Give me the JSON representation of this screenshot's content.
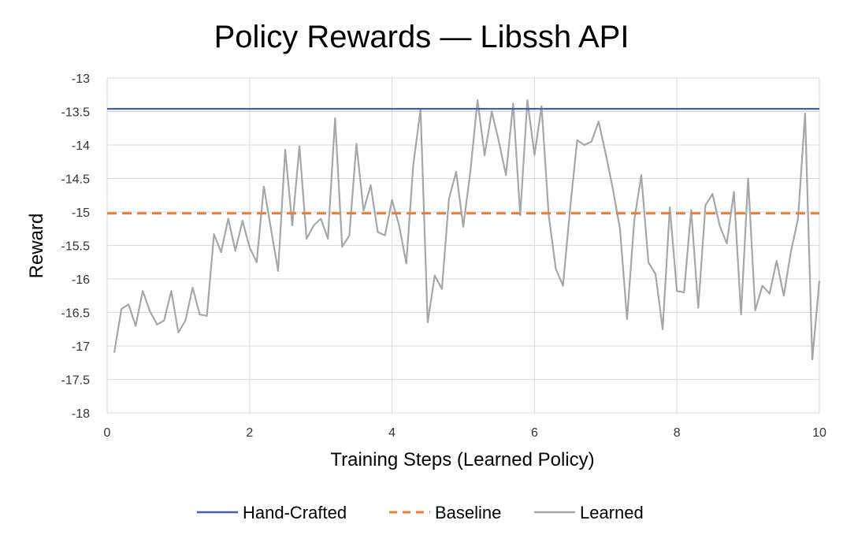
{
  "chart_data": {
    "type": "line",
    "title": "Policy Rewards — Libssh API",
    "xlabel": "Training Steps (Learned Policy)",
    "ylabel": "Reward",
    "xlim": [
      0,
      10
    ],
    "ylim": [
      -18,
      -13
    ],
    "xticks": [
      0,
      2,
      4,
      6,
      8,
      10
    ],
    "yticks": [
      -13,
      -13.5,
      -14,
      -14.5,
      -15,
      -15.5,
      -16,
      -16.5,
      -17,
      -17.5,
      -18
    ],
    "grid": true,
    "legend_position": "bottom",
    "series": [
      {
        "name": "Hand-Crafted",
        "color": "#4a5bb8",
        "style": "solid",
        "x": [
          0,
          10
        ],
        "y": [
          -13.46,
          -13.46
        ]
      },
      {
        "name": "Baseline",
        "color": "#ed7d31",
        "style": "dashed",
        "x": [
          0,
          10
        ],
        "y": [
          -15.02,
          -15.02
        ]
      },
      {
        "name": "Learned",
        "color": "#a6a6a6",
        "style": "solid",
        "x": [
          0.1,
          0.2,
          0.3,
          0.4,
          0.5,
          0.6,
          0.7,
          0.8,
          0.9,
          1.0,
          1.1,
          1.2,
          1.3,
          1.4,
          1.5,
          1.6,
          1.7,
          1.8,
          1.9,
          2.0,
          2.1,
          2.2,
          2.3,
          2.4,
          2.5,
          2.6,
          2.7,
          2.8,
          2.9,
          3.0,
          3.1,
          3.2,
          3.3,
          3.4,
          3.5,
          3.6,
          3.7,
          3.8,
          3.9,
          4.0,
          4.1,
          4.2,
          4.3,
          4.4,
          4.5,
          4.6,
          4.7,
          4.8,
          4.9,
          5.0,
          5.1,
          5.2,
          5.3,
          5.4,
          5.5,
          5.6,
          5.7,
          5.8,
          5.9,
          6.0,
          6.1,
          6.2,
          6.3,
          6.4,
          6.5,
          6.6,
          6.7,
          6.8,
          6.9,
          7.0,
          7.1,
          7.2,
          7.3,
          7.4,
          7.5,
          7.6,
          7.7,
          7.8,
          7.9,
          8.0,
          8.1,
          8.2,
          8.3,
          8.4,
          8.5,
          8.6,
          8.7,
          8.8,
          8.9,
          9.0,
          9.1,
          9.2,
          9.3,
          9.4,
          9.5,
          9.6,
          9.7,
          9.8,
          9.9,
          10.0
        ],
        "y": [
          -17.1,
          -16.45,
          -16.38,
          -16.7,
          -16.18,
          -16.48,
          -16.68,
          -16.62,
          -16.18,
          -16.8,
          -16.62,
          -16.13,
          -16.53,
          -16.55,
          -15.33,
          -15.6,
          -15.1,
          -15.58,
          -15.13,
          -15.53,
          -15.75,
          -14.62,
          -15.25,
          -15.88,
          -14.07,
          -15.2,
          -14.02,
          -15.4,
          -15.2,
          -15.1,
          -15.4,
          -13.6,
          -15.52,
          -15.35,
          -13.98,
          -14.98,
          -14.6,
          -15.3,
          -15.35,
          -14.82,
          -15.2,
          -15.77,
          -14.28,
          -13.47,
          -16.65,
          -15.95,
          -16.15,
          -14.8,
          -14.4,
          -15.22,
          -14.4,
          -13.33,
          -14.15,
          -13.5,
          -13.95,
          -14.45,
          -13.38,
          -15.05,
          -13.33,
          -14.15,
          -13.42,
          -15.05,
          -15.85,
          -16.1,
          -14.95,
          -13.93,
          -14.0,
          -13.95,
          -13.65,
          -14.13,
          -14.65,
          -15.25,
          -16.6,
          -15.13,
          -14.45,
          -15.75,
          -15.93,
          -16.75,
          -14.93,
          -16.18,
          -16.2,
          -14.97,
          -16.43,
          -14.9,
          -14.73,
          -15.2,
          -15.47,
          -14.7,
          -16.53,
          -14.5,
          -16.47,
          -16.1,
          -16.22,
          -15.73,
          -16.25,
          -15.6,
          -15.1,
          -13.53,
          -17.2,
          -16.03
        ]
      }
    ]
  }
}
